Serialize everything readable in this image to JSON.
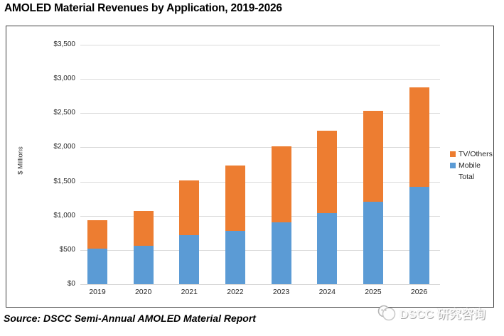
{
  "title": "AMOLED Material Revenues by Application, 2019-2026",
  "source": "Source: DSCC Semi-Annual AMOLED Material Report",
  "watermark": {
    "text": "DSCC 研究咨询"
  },
  "colors": {
    "mobile": "#5b9bd5",
    "tv_others": "#ed7d31",
    "gridline": "#d9d9d9",
    "frame_border": "#3f3f3f"
  },
  "chart_data": {
    "type": "bar",
    "stacked": true,
    "title": "AMOLED Material Revenues by Application, 2019-2026",
    "xlabel": "",
    "ylabel": "$ Millions",
    "categories": [
      "2019",
      "2020",
      "2021",
      "2022",
      "2023",
      "2024",
      "2025",
      "2026"
    ],
    "series": [
      {
        "name": "Mobile",
        "color": "#5b9bd5",
        "values": [
          520,
          560,
          720,
          775,
          900,
          1035,
          1200,
          1420
        ]
      },
      {
        "name": "TV/Others",
        "color": "#ed7d31",
        "values": [
          410,
          510,
          800,
          955,
          1120,
          1210,
          1335,
          1455
        ]
      }
    ],
    "totals": [
      930,
      1070,
      1520,
      1730,
      2020,
      2245,
      2535,
      2875
    ],
    "legend_entries": [
      {
        "label": "TV/Others",
        "color": "#ed7d31"
      },
      {
        "label": "Mobile",
        "color": "#5b9bd5"
      },
      {
        "label": "Total",
        "color": null
      }
    ],
    "legend_position": "right",
    "grid": true,
    "ylim": [
      0,
      3500
    ],
    "ytick_step": 500,
    "yticks": [
      0,
      500,
      1000,
      1500,
      2000,
      2500,
      3000,
      3500
    ],
    "ytick_labels": [
      "$0",
      "$500",
      "$1,000",
      "$1,500",
      "$2,000",
      "$2,500",
      "$3,000",
      "$3,500"
    ]
  }
}
